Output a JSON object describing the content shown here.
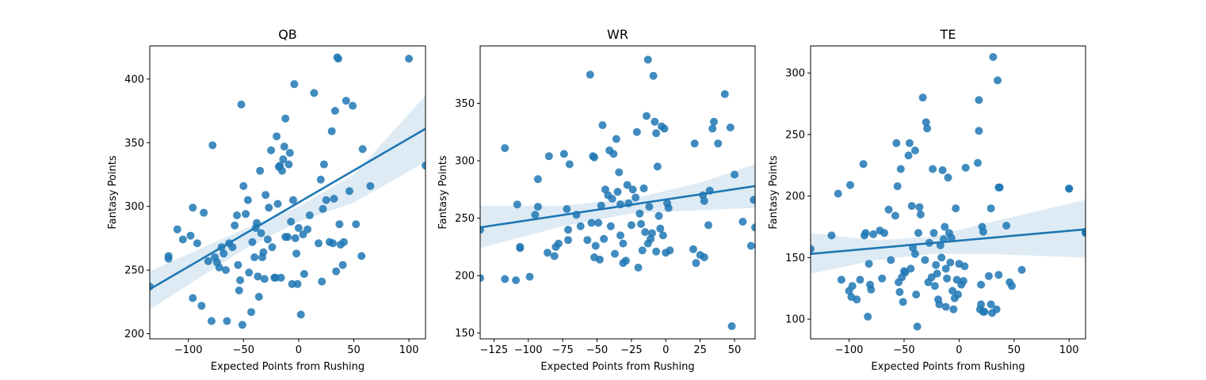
{
  "colors": {
    "points": "#1f77b4",
    "line": "#1f77b4",
    "band": "#1f77b4"
  },
  "chart_data": [
    {
      "type": "scatter",
      "title": "QB",
      "xlabel": "Expected Points from Rushing",
      "ylabel": "Fantasy Points",
      "xlim": [
        -135,
        115
      ],
      "ylim": [
        196,
        426
      ],
      "xticks": [
        -100,
        -50,
        0,
        50,
        100
      ],
      "yticks": [
        200,
        250,
        300,
        350,
        400
      ],
      "xtick_labels": [
        "−100",
        "−50",
        "0",
        "50",
        "100"
      ],
      "ytick_labels": [
        "200",
        "250",
        "300",
        "350",
        "400"
      ],
      "regression": {
        "x": [
          -135,
          115
        ],
        "y": [
          235,
          361
        ]
      },
      "ci_band": {
        "x": [
          -135,
          -50,
          0,
          50,
          115
        ],
        "lower": [
          219,
          266,
          288,
          303,
          335
        ],
        "upper": [
          249,
          282,
          300,
          325,
          387
        ]
      },
      "points": [
        [
          -135,
          237
        ],
        [
          -118,
          261
        ],
        [
          -118,
          259
        ],
        [
          -110,
          282
        ],
        [
          -105,
          274
        ],
        [
          -98,
          277
        ],
        [
          -96,
          299
        ],
        [
          -96,
          228
        ],
        [
          -92,
          271
        ],
        [
          -88,
          222
        ],
        [
          -86,
          295
        ],
        [
          -82,
          257
        ],
        [
          -79,
          210
        ],
        [
          -78,
          348
        ],
        [
          -76,
          260
        ],
        [
          -74,
          256
        ],
        [
          -72,
          252
        ],
        [
          -70,
          268
        ],
        [
          -68,
          263
        ],
        [
          -66,
          250
        ],
        [
          -65,
          210
        ],
        [
          -63,
          271
        ],
        [
          -60,
          268
        ],
        [
          -58,
          285
        ],
        [
          -56,
          293
        ],
        [
          -55,
          254
        ],
        [
          -54,
          234
        ],
        [
          -53,
          242
        ],
        [
          -52,
          380
        ],
        [
          -51,
          207
        ],
        [
          -50,
          316
        ],
        [
          -48,
          294
        ],
        [
          -46,
          305
        ],
        [
          -45,
          248
        ],
        [
          -43,
          217
        ],
        [
          -42,
          272
        ],
        [
          -40,
          260
        ],
        [
          -39,
          283
        ],
        [
          -38,
          287
        ],
        [
          -37,
          245
        ],
        [
          -36,
          229
        ],
        [
          -35,
          328
        ],
        [
          -34,
          279
        ],
        [
          -33,
          260
        ],
        [
          -32,
          264
        ],
        [
          -31,
          243
        ],
        [
          -30,
          309
        ],
        [
          -28,
          274
        ],
        [
          -27,
          299
        ],
        [
          -25,
          344
        ],
        [
          -24,
          268
        ],
        [
          -22,
          244
        ],
        [
          -21,
          244
        ],
        [
          -20,
          355
        ],
        [
          -19,
          302
        ],
        [
          -18,
          331
        ],
        [
          -17,
          332
        ],
        [
          -16,
          244
        ],
        [
          -15,
          328
        ],
        [
          -14,
          337
        ],
        [
          -13,
          347
        ],
        [
          -12,
          369
        ],
        [
          -12,
          276
        ],
        [
          -10,
          276
        ],
        [
          -9,
          333
        ],
        [
          -8,
          342
        ],
        [
          -7,
          288
        ],
        [
          -6,
          239
        ],
        [
          -5,
          305
        ],
        [
          -4,
          396
        ],
        [
          -3,
          275
        ],
        [
          -2,
          263
        ],
        [
          -1,
          239
        ],
        [
          0,
          283
        ],
        [
          2,
          215
        ],
        [
          4,
          278
        ],
        [
          5,
          247
        ],
        [
          8,
          282
        ],
        [
          10,
          293
        ],
        [
          14,
          389
        ],
        [
          18,
          271
        ],
        [
          20,
          321
        ],
        [
          21,
          241
        ],
        [
          22,
          298
        ],
        [
          23,
          333
        ],
        [
          25,
          305
        ],
        [
          28,
          272
        ],
        [
          30,
          359
        ],
        [
          31,
          271
        ],
        [
          32,
          306
        ],
        [
          33,
          375
        ],
        [
          34,
          249
        ],
        [
          35,
          417
        ],
        [
          36,
          416
        ],
        [
          37,
          286
        ],
        [
          38,
          270
        ],
        [
          40,
          254
        ],
        [
          41,
          272
        ],
        [
          43,
          383
        ],
        [
          46,
          312
        ],
        [
          49,
          379
        ],
        [
          52,
          286
        ],
        [
          57,
          261
        ],
        [
          58,
          345
        ],
        [
          65,
          316
        ],
        [
          100,
          416
        ],
        [
          115,
          332
        ]
      ]
    },
    {
      "type": "scatter",
      "title": "WR",
      "xlabel": "Expected Points from Rushing",
      "ylabel": "Fantasy Points",
      "xlim": [
        -135,
        65
      ],
      "ylim": [
        145,
        400
      ],
      "xticks": [
        -125,
        -100,
        -75,
        -50,
        -25,
        0,
        25,
        50
      ],
      "yticks": [
        150,
        200,
        250,
        300,
        350
      ],
      "xtick_labels": [
        "−125",
        "−100",
        "−75",
        "−50",
        "−25",
        "0",
        "25",
        "50"
      ],
      "ytick_labels": [
        "150",
        "200",
        "250",
        "300",
        "350"
      ],
      "regression": {
        "x": [
          -135,
          65
        ],
        "y": [
          242,
          278
        ]
      },
      "ci_band": {
        "x": [
          -135,
          -75,
          -25,
          25,
          65
        ],
        "lower": [
          224,
          243,
          254,
          257,
          259
        ],
        "upper": [
          261,
          261,
          267,
          281,
          297
        ]
      },
      "points": [
        [
          -135,
          198
        ],
        [
          -135,
          240
        ],
        [
          -117,
          311
        ],
        [
          -117,
          197
        ],
        [
          -109,
          196
        ],
        [
          -108,
          262
        ],
        [
          -106,
          225
        ],
        [
          -106,
          224
        ],
        [
          -99,
          199
        ],
        [
          -95,
          253
        ],
        [
          -93,
          284
        ],
        [
          -93,
          260
        ],
        [
          -86,
          220
        ],
        [
          -85,
          304
        ],
        [
          -81,
          217
        ],
        [
          -80,
          225
        ],
        [
          -78,
          228
        ],
        [
          -74,
          306
        ],
        [
          -72,
          258
        ],
        [
          -71,
          240
        ],
        [
          -71,
          231
        ],
        [
          -70,
          297
        ],
        [
          -65,
          253
        ],
        [
          -62,
          243
        ],
        [
          -57,
          231
        ],
        [
          -55,
          375
        ],
        [
          -54,
          246
        ],
        [
          -53,
          304
        ],
        [
          -52,
          303
        ],
        [
          -52,
          216
        ],
        [
          -51,
          226
        ],
        [
          -49,
          246
        ],
        [
          -48,
          214
        ],
        [
          -47,
          261
        ],
        [
          -46,
          331
        ],
        [
          -45,
          232
        ],
        [
          -44,
          275
        ],
        [
          -42,
          270
        ],
        [
          -41,
          309
        ],
        [
          -40,
          243
        ],
        [
          -39,
          267
        ],
        [
          -38,
          306
        ],
        [
          -37,
          219
        ],
        [
          -36,
          319
        ],
        [
          -35,
          273
        ],
        [
          -34,
          290
        ],
        [
          -33,
          262
        ],
        [
          -33,
          235
        ],
        [
          -31,
          211
        ],
        [
          -31,
          228
        ],
        [
          -29,
          213
        ],
        [
          -28,
          279
        ],
        [
          -27,
          263
        ],
        [
          -25,
          244
        ],
        [
          -24,
          275
        ],
        [
          -22,
          268
        ],
        [
          -21,
          325
        ],
        [
          -20,
          207
        ],
        [
          -19,
          254
        ],
        [
          -18,
          245
        ],
        [
          -17,
          222
        ],
        [
          -16,
          276
        ],
        [
          -15,
          238
        ],
        [
          -14,
          339
        ],
        [
          -13,
          388
        ],
        [
          -13,
          228
        ],
        [
          -12,
          260
        ],
        [
          -11,
          232
        ],
        [
          -10,
          237
        ],
        [
          -9,
          374
        ],
        [
          -8,
          334
        ],
        [
          -7,
          324
        ],
        [
          -7,
          221
        ],
        [
          -6,
          295
        ],
        [
          -5,
          252
        ],
        [
          -4,
          241
        ],
        [
          -3,
          330
        ],
        [
          -2,
          235
        ],
        [
          -1,
          328
        ],
        [
          0,
          220
        ],
        [
          1,
          263
        ],
        [
          2,
          259
        ],
        [
          3,
          222
        ],
        [
          20,
          223
        ],
        [
          21,
          315
        ],
        [
          22,
          211
        ],
        [
          25,
          218
        ],
        [
          27,
          270
        ],
        [
          28,
          216
        ],
        [
          28,
          265
        ],
        [
          31,
          244
        ],
        [
          32,
          274
        ],
        [
          34,
          328
        ],
        [
          35,
          334
        ],
        [
          38,
          315
        ],
        [
          43,
          358
        ],
        [
          47,
          329
        ],
        [
          48,
          156
        ],
        [
          50,
          288
        ],
        [
          56,
          247
        ],
        [
          62,
          226
        ],
        [
          64,
          266
        ],
        [
          65,
          242
        ]
      ]
    },
    {
      "type": "scatter",
      "title": "TE",
      "xlabel": "Expected Points from Rushing",
      "ylabel": "Fantasy Points",
      "xlim": [
        -135,
        115
      ],
      "ylim": [
        84,
        322
      ],
      "xticks": [
        -100,
        -50,
        0,
        50,
        100
      ],
      "yticks": [
        100,
        150,
        200,
        250,
        300
      ],
      "xtick_labels": [
        "−100",
        "−50",
        "0",
        "50",
        "100"
      ],
      "ytick_labels": [
        "100",
        "150",
        "200",
        "250",
        "300"
      ],
      "regression": {
        "x": [
          -135,
          115
        ],
        "y": [
          153,
          173
        ]
      },
      "ci_band": {
        "x": [
          -135,
          -75,
          -25,
          25,
          115
        ],
        "lower": [
          137,
          148,
          153,
          153,
          150
        ],
        "upper": [
          170,
          164,
          167,
          178,
          197
        ]
      },
      "points": [
        [
          -135,
          157
        ],
        [
          -116,
          168
        ],
        [
          -110,
          202
        ],
        [
          -107,
          132
        ],
        [
          -100,
          123
        ],
        [
          -99,
          209
        ],
        [
          -98,
          118
        ],
        [
          -97,
          127
        ],
        [
          -93,
          116
        ],
        [
          -90,
          132
        ],
        [
          -87,
          226
        ],
        [
          -86,
          168
        ],
        [
          -85,
          170
        ],
        [
          -83,
          102
        ],
        [
          -82,
          145
        ],
        [
          -81,
          128
        ],
        [
          -80,
          124
        ],
        [
          -78,
          169
        ],
        [
          -72,
          172
        ],
        [
          -70,
          133
        ],
        [
          -68,
          170
        ],
        [
          -64,
          189
        ],
        [
          -62,
          148
        ],
        [
          -58,
          184
        ],
        [
          -57,
          243
        ],
        [
          -56,
          208
        ],
        [
          -55,
          130
        ],
        [
          -54,
          122
        ],
        [
          -53,
          222
        ],
        [
          -52,
          134
        ],
        [
          -51,
          114
        ],
        [
          -50,
          139
        ],
        [
          -49,
          138
        ],
        [
          -46,
          233
        ],
        [
          -45,
          243
        ],
        [
          -44,
          141
        ],
        [
          -43,
          192
        ],
        [
          -42,
          158
        ],
        [
          -40,
          237
        ],
        [
          -40,
          153
        ],
        [
          -39,
          120
        ],
        [
          -38,
          94
        ],
        [
          -37,
          170
        ],
        [
          -36,
          191
        ],
        [
          -35,
          185
        ],
        [
          -33,
          280
        ],
        [
          -31,
          148
        ],
        [
          -30,
          260
        ],
        [
          -29,
          255
        ],
        [
          -28,
          130
        ],
        [
          -27,
          162
        ],
        [
          -25,
          134
        ],
        [
          -24,
          222
        ],
        [
          -23,
          170
        ],
        [
          -22,
          127
        ],
        [
          -21,
          144
        ],
        [
          -20,
          137
        ],
        [
          -19,
          116
        ],
        [
          -18,
          112
        ],
        [
          -17,
          160
        ],
        [
          -16,
          150
        ],
        [
          -15,
          221
        ],
        [
          -14,
          165
        ],
        [
          -13,
          175
        ],
        [
          -12,
          141
        ],
        [
          -12,
          110
        ],
        [
          -11,
          133
        ],
        [
          -10,
          215
        ],
        [
          -9,
          170
        ],
        [
          -8,
          146
        ],
        [
          -7,
          166
        ],
        [
          -6,
          123
        ],
        [
          -5,
          108
        ],
        [
          -4,
          117
        ],
        [
          -3,
          190
        ],
        [
          -2,
          132
        ],
        [
          -1,
          120
        ],
        [
          0,
          145
        ],
        [
          2,
          128
        ],
        [
          4,
          131
        ],
        [
          5,
          143
        ],
        [
          6,
          223
        ],
        [
          17,
          227
        ],
        [
          18,
          278
        ],
        [
          18,
          253
        ],
        [
          19,
          108
        ],
        [
          20,
          128
        ],
        [
          20,
          112
        ],
        [
          21,
          175
        ],
        [
          22,
          106
        ],
        [
          22,
          171
        ],
        [
          23,
          106
        ],
        [
          27,
          135
        ],
        [
          29,
          190
        ],
        [
          29,
          112
        ],
        [
          30,
          105
        ],
        [
          31,
          313
        ],
        [
          34,
          108
        ],
        [
          35,
          294
        ],
        [
          36,
          136
        ],
        [
          36,
          207
        ],
        [
          37,
          207
        ],
        [
          43,
          176
        ],
        [
          46,
          130
        ],
        [
          48,
          127
        ],
        [
          57,
          140
        ],
        [
          100,
          206
        ],
        [
          100,
          206
        ],
        [
          115,
          171
        ],
        [
          115,
          170
        ]
      ]
    }
  ]
}
